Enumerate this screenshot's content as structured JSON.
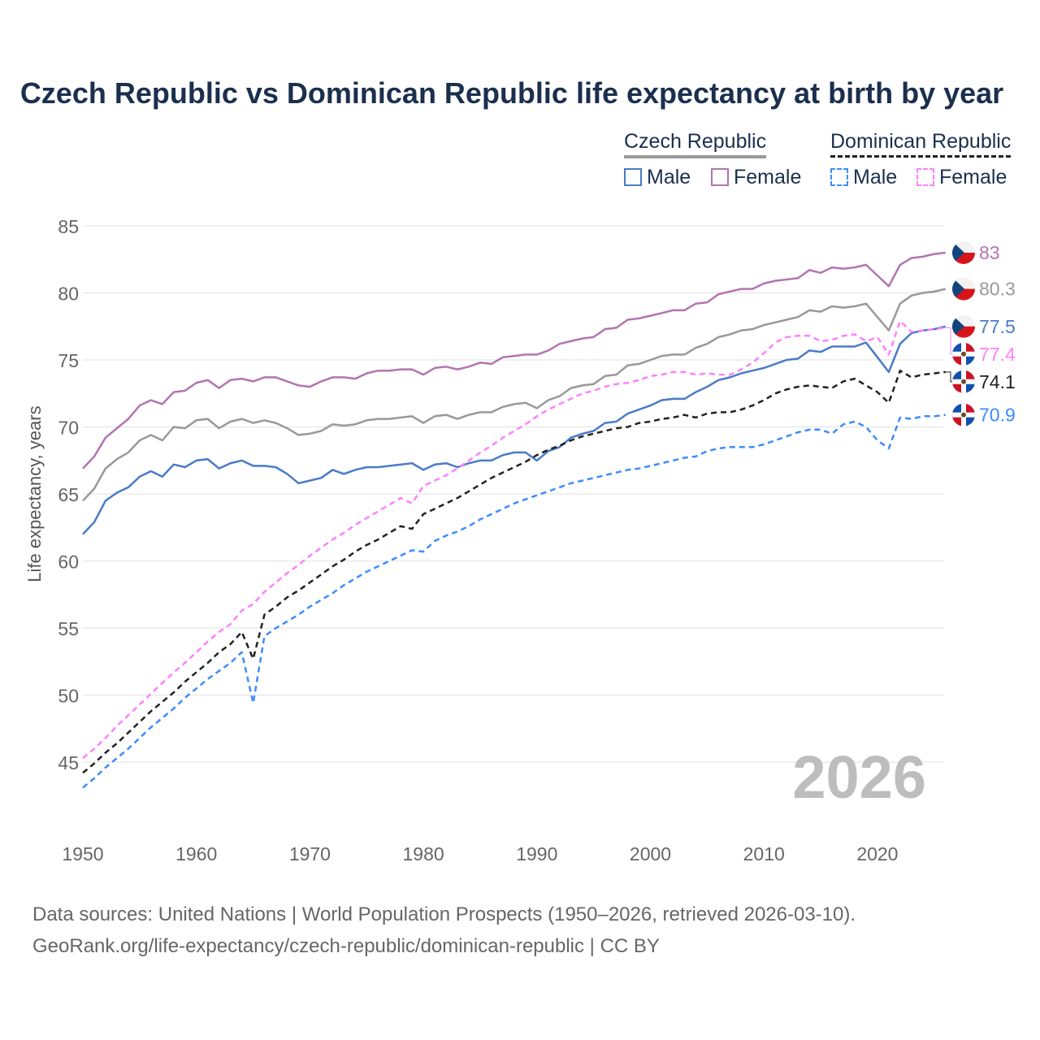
{
  "title": "Czech Republic vs Dominican Republic life expectancy at birth by year",
  "legend": {
    "groups": [
      {
        "name": "Czech Republic",
        "items": [
          "Male",
          "Female"
        ]
      },
      {
        "name": "Dominican Republic",
        "items": [
          "Male",
          "Female"
        ]
      }
    ]
  },
  "year_watermark": "2026",
  "source": {
    "line1": "Data sources: United Nations | World Population Prospects (1950–2026, retrieved 2026-03-10).",
    "line2": "GeoRank.org/life-expectancy/czech-republic/dominican-republic | CC BY"
  },
  "chart_data": {
    "type": "line",
    "title": "Czech Republic vs Dominican Republic life expectancy at birth by year",
    "xlabel": "",
    "ylabel": "Life expectancy, years",
    "xlim": [
      1950,
      2026
    ],
    "ylim": [
      42,
      86
    ],
    "xticks": [
      1950,
      1960,
      1970,
      1980,
      1990,
      2000,
      2010,
      2020
    ],
    "yticks": [
      45,
      50,
      55,
      60,
      65,
      70,
      75,
      80,
      85
    ],
    "grid": true,
    "legend_placement": "top-right",
    "x_start": 1950,
    "series": [
      {
        "name": "Czech Republic Female",
        "country": "cz",
        "color": "#b374b1",
        "dashed": false,
        "end_label": "83",
        "values": [
          66.9,
          67.8,
          69.2,
          69.9,
          70.6,
          71.6,
          72.0,
          71.7,
          72.6,
          72.7,
          73.3,
          73.5,
          72.9,
          73.5,
          73.6,
          73.4,
          73.7,
          73.7,
          73.4,
          73.1,
          73.0,
          73.4,
          73.7,
          73.7,
          73.6,
          74.0,
          74.2,
          74.2,
          74.3,
          74.3,
          73.9,
          74.4,
          74.5,
          74.3,
          74.5,
          74.8,
          74.7,
          75.2,
          75.3,
          75.4,
          75.4,
          75.7,
          76.2,
          76.4,
          76.6,
          76.7,
          77.3,
          77.4,
          78.0,
          78.1,
          78.3,
          78.5,
          78.7,
          78.7,
          79.2,
          79.3,
          79.9,
          80.1,
          80.3,
          80.3,
          80.7,
          80.9,
          81.0,
          81.1,
          81.7,
          81.5,
          81.9,
          81.8,
          81.9,
          82.1,
          81.3,
          80.5,
          82.1,
          82.6,
          82.7,
          82.9,
          83.0
        ]
      },
      {
        "name": "Czech Republic",
        "country": "cz",
        "color": "#999999",
        "dashed": false,
        "end_label": "80.3",
        "values": [
          64.5,
          65.4,
          66.9,
          67.6,
          68.1,
          69.0,
          69.4,
          69.0,
          70.0,
          69.9,
          70.5,
          70.6,
          69.9,
          70.4,
          70.6,
          70.3,
          70.5,
          70.3,
          69.9,
          69.4,
          69.5,
          69.7,
          70.2,
          70.1,
          70.2,
          70.5,
          70.6,
          70.6,
          70.7,
          70.8,
          70.3,
          70.8,
          70.9,
          70.6,
          70.9,
          71.1,
          71.1,
          71.5,
          71.7,
          71.8,
          71.4,
          72.0,
          72.3,
          72.9,
          73.1,
          73.2,
          73.8,
          73.9,
          74.6,
          74.7,
          75.0,
          75.3,
          75.4,
          75.4,
          75.9,
          76.2,
          76.7,
          76.9,
          77.2,
          77.3,
          77.6,
          77.8,
          78.0,
          78.2,
          78.7,
          78.6,
          79.0,
          78.9,
          79.0,
          79.2,
          78.2,
          77.2,
          79.2,
          79.8,
          80.0,
          80.1,
          80.3
        ]
      },
      {
        "name": "Czech Republic Male",
        "country": "cz",
        "color": "#4a7bc8",
        "dashed": false,
        "end_label": "77.5",
        "values": [
          62.0,
          62.9,
          64.5,
          65.1,
          65.5,
          66.3,
          66.7,
          66.3,
          67.2,
          67.0,
          67.5,
          67.6,
          66.9,
          67.3,
          67.5,
          67.1,
          67.1,
          67.0,
          66.5,
          65.8,
          66.0,
          66.2,
          66.8,
          66.5,
          66.8,
          67.0,
          67.0,
          67.1,
          67.2,
          67.3,
          66.8,
          67.2,
          67.3,
          67.0,
          67.3,
          67.5,
          67.5,
          67.9,
          68.1,
          68.1,
          67.5,
          68.2,
          68.5,
          69.2,
          69.5,
          69.7,
          70.3,
          70.4,
          71.0,
          71.3,
          71.6,
          72.0,
          72.1,
          72.1,
          72.6,
          73.0,
          73.5,
          73.7,
          74.0,
          74.2,
          74.4,
          74.7,
          75.0,
          75.1,
          75.7,
          75.6,
          76.0,
          76.0,
          76.0,
          76.3,
          75.2,
          74.1,
          76.2,
          77.0,
          77.2,
          77.3,
          77.5
        ]
      },
      {
        "name": "Dominican Republic Female",
        "country": "do",
        "color": "#ff80ff",
        "dashed": true,
        "end_label": "77.4",
        "values": [
          45.3,
          46.0,
          46.8,
          47.7,
          48.5,
          49.3,
          50.1,
          50.9,
          51.7,
          52.4,
          53.2,
          54.0,
          54.7,
          55.3,
          56.3,
          56.8,
          57.7,
          58.4,
          59.1,
          59.7,
          60.4,
          61.0,
          61.6,
          62.1,
          62.7,
          63.2,
          63.7,
          64.2,
          64.7,
          64.3,
          65.6,
          66.0,
          66.4,
          66.9,
          67.5,
          68.1,
          68.6,
          69.2,
          69.7,
          70.2,
          70.8,
          71.3,
          71.7,
          72.1,
          72.5,
          72.7,
          73.0,
          73.2,
          73.3,
          73.5,
          73.8,
          73.9,
          74.1,
          74.1,
          73.9,
          74.0,
          73.9,
          73.9,
          74.3,
          74.8,
          75.5,
          76.3,
          76.7,
          76.8,
          76.8,
          76.4,
          76.5,
          76.8,
          76.9,
          76.4,
          76.7,
          75.4,
          77.9,
          77.1,
          77.2,
          77.3,
          77.4
        ]
      },
      {
        "name": "Dominican Republic",
        "country": "do",
        "color": "#222222",
        "dashed": true,
        "end_label": "74.1",
        "values": [
          44.2,
          44.9,
          45.7,
          46.4,
          47.2,
          48.0,
          48.8,
          49.5,
          50.2,
          51.0,
          51.7,
          52.4,
          53.2,
          53.8,
          54.7,
          52.7,
          56.0,
          56.6,
          57.3,
          57.8,
          58.4,
          59.0,
          59.6,
          60.1,
          60.7,
          61.2,
          61.6,
          62.1,
          62.6,
          62.4,
          63.5,
          63.9,
          64.3,
          64.7,
          65.2,
          65.7,
          66.2,
          66.6,
          67.0,
          67.4,
          67.9,
          68.3,
          68.6,
          69.0,
          69.3,
          69.5,
          69.7,
          69.9,
          70.0,
          70.3,
          70.4,
          70.6,
          70.7,
          70.9,
          70.7,
          71.0,
          71.1,
          71.1,
          71.3,
          71.6,
          72.0,
          72.5,
          72.8,
          73.0,
          73.1,
          73.0,
          72.9,
          73.4,
          73.6,
          73.1,
          72.6,
          71.8,
          74.2,
          73.7,
          73.9,
          74.0,
          74.1
        ]
      },
      {
        "name": "Dominican Republic Male",
        "country": "do",
        "color": "#3c8cff",
        "dashed": true,
        "end_label": "70.9",
        "values": [
          43.1,
          43.8,
          44.6,
          45.3,
          46.0,
          46.8,
          47.6,
          48.3,
          49.0,
          49.8,
          50.5,
          51.2,
          51.8,
          52.4,
          53.2,
          49.4,
          54.4,
          55.0,
          55.5,
          56.0,
          56.6,
          57.1,
          57.6,
          58.2,
          58.7,
          59.2,
          59.6,
          60.0,
          60.4,
          60.8,
          60.7,
          61.5,
          61.9,
          62.2,
          62.6,
          63.1,
          63.5,
          63.9,
          64.3,
          64.6,
          64.9,
          65.2,
          65.5,
          65.8,
          66.0,
          66.2,
          66.4,
          66.6,
          66.8,
          66.9,
          67.1,
          67.3,
          67.5,
          67.7,
          67.8,
          68.2,
          68.4,
          68.5,
          68.5,
          68.5,
          68.7,
          69.0,
          69.3,
          69.6,
          69.8,
          69.8,
          69.5,
          70.2,
          70.4,
          70.0,
          69.0,
          68.4,
          70.7,
          70.6,
          70.8,
          70.8,
          70.9
        ]
      }
    ]
  }
}
